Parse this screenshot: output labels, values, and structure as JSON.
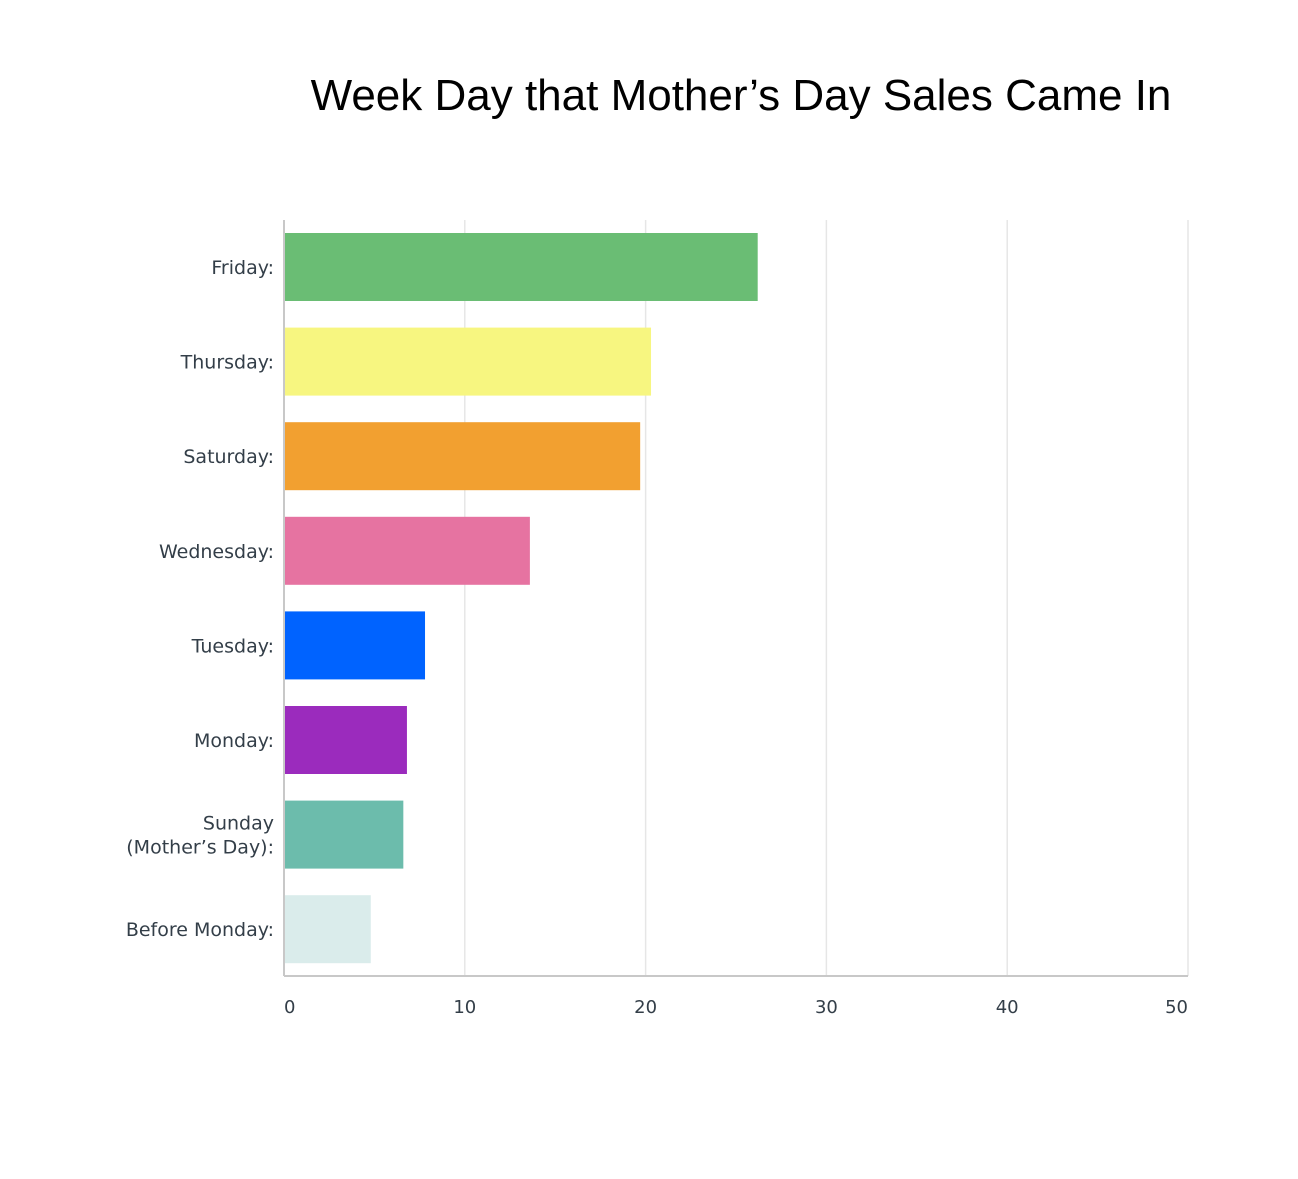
{
  "chart_data": {
    "type": "bar",
    "orientation": "horizontal",
    "title": "Week Day that Mother’s Day Sales Came In",
    "xlabel": "",
    "ylabel": "",
    "xlim": [
      0,
      50
    ],
    "ticks": [
      "0",
      "10",
      "20",
      "30",
      "40",
      "50"
    ],
    "tick_values": [
      0,
      10,
      20,
      30,
      40,
      50
    ],
    "grid": true,
    "legend": "none",
    "categories": [
      "Friday:",
      "Thursday:",
      "Saturday:",
      "Wednesday:",
      "Tuesday:",
      "Monday:",
      "Sunday (Mother’s Day):",
      "Before Monday:"
    ],
    "category_lines": [
      [
        "Friday:"
      ],
      [
        "Thursday:"
      ],
      [
        "Saturday:"
      ],
      [
        "Wednesday:"
      ],
      [
        "Tuesday:"
      ],
      [
        "Monday:"
      ],
      [
        "Sunday",
        "(Mother’s Day):"
      ],
      [
        "Before Monday:"
      ]
    ],
    "values": [
      26.2,
      20.3,
      19.7,
      13.6,
      7.8,
      6.8,
      6.6,
      4.8
    ],
    "colors": [
      "#6abd74",
      "#f7f680",
      "#f2a030",
      "#e673a1",
      "#0063ff",
      "#9b2bbd",
      "#6cbcac",
      "#daeceb"
    ]
  }
}
